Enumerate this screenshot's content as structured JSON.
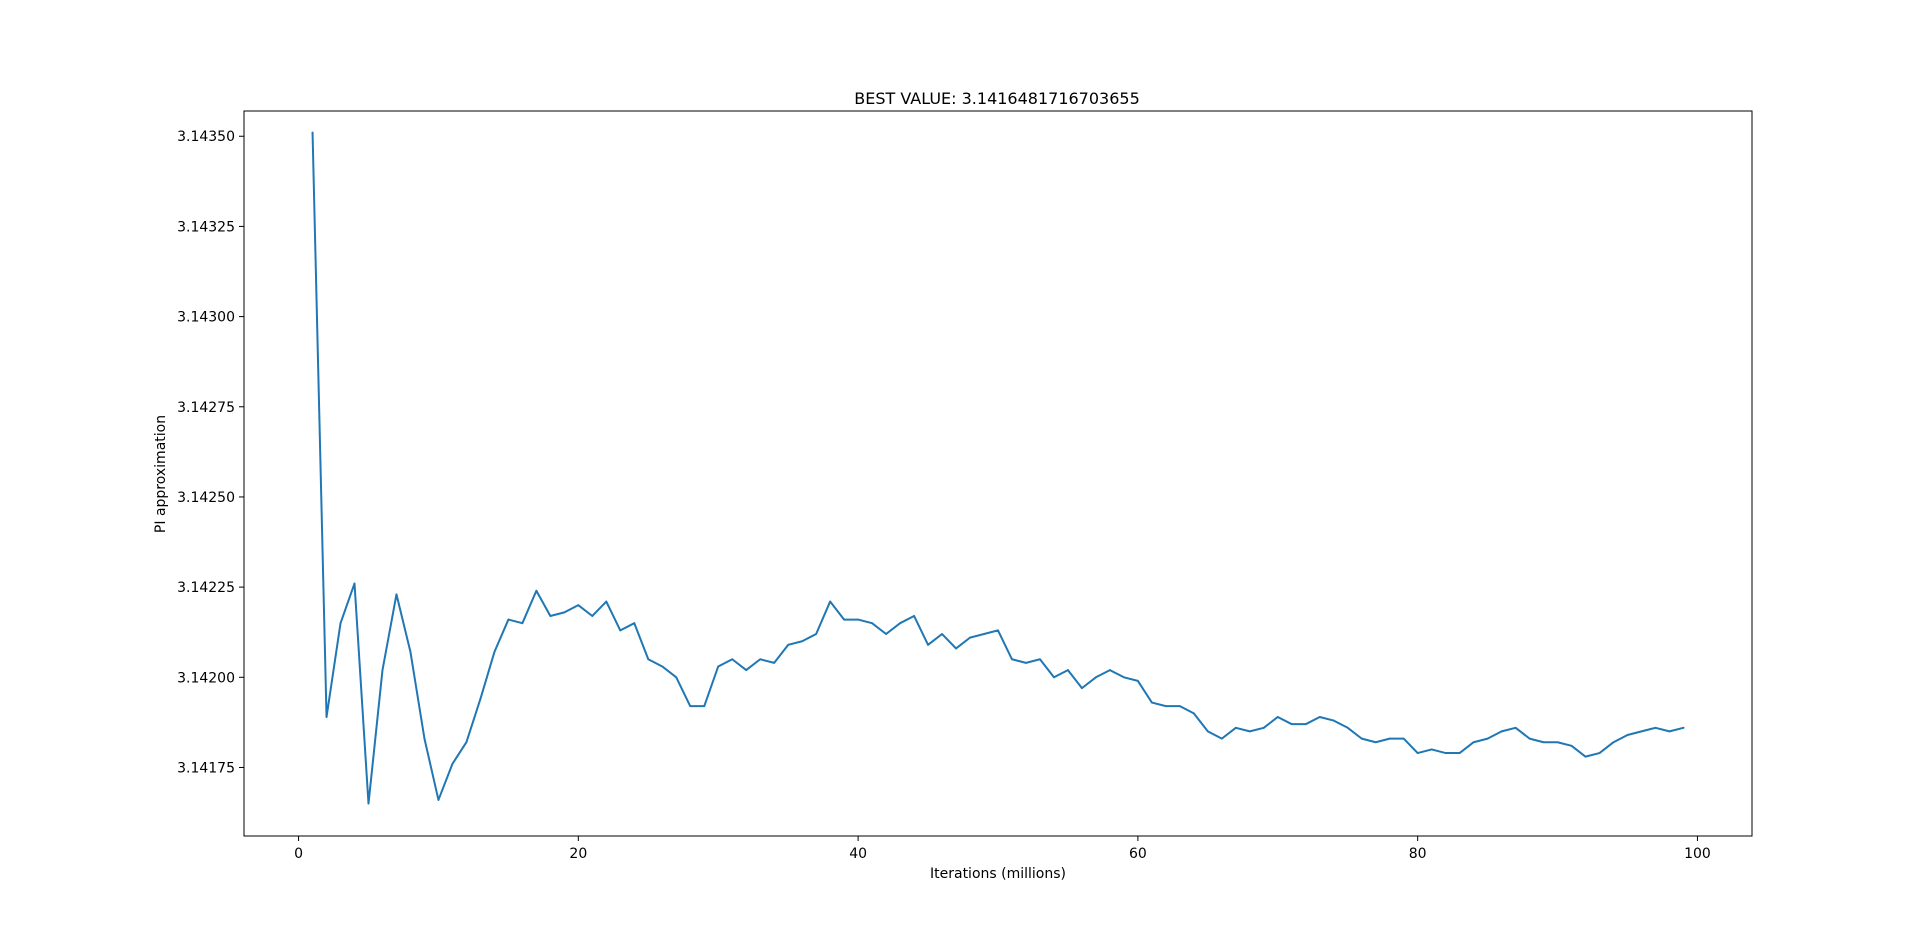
{
  "chart_data": {
    "type": "line",
    "title": "BEST VALUE: 3.1416481716703655",
    "xlabel": "Iterations (millions)",
    "ylabel": "PI approximation",
    "xlim": [
      -3.9,
      103.9
    ],
    "ylim": [
      3.14156,
      3.14357
    ],
    "xticks": [
      0,
      20,
      40,
      60,
      80,
      100
    ],
    "xtick_labels": [
      "0",
      "20",
      "40",
      "60",
      "80",
      "100"
    ],
    "yticks": [
      3.14175,
      3.142,
      3.14225,
      3.1425,
      3.14275,
      3.143,
      3.14325,
      3.1435
    ],
    "ytick_labels": [
      "3.14175",
      "3.14200",
      "3.14225",
      "3.14250",
      "3.14275",
      "3.14300",
      "3.14325",
      "3.14350"
    ],
    "grid": false,
    "line_color": "#1f77b4",
    "series": [
      {
        "x": [
          1,
          2,
          3,
          4,
          5,
          6,
          7,
          8,
          9,
          10,
          11,
          12,
          13,
          14,
          15,
          16,
          17,
          18,
          19,
          20,
          21,
          22,
          23,
          24,
          25,
          26,
          27,
          28,
          29,
          30,
          31,
          32,
          33,
          34,
          35,
          36,
          37,
          38,
          39,
          40,
          41,
          42,
          43,
          44,
          45,
          46,
          47,
          48,
          49,
          50,
          51,
          52,
          53,
          54,
          55,
          56,
          57,
          58,
          59,
          60,
          61,
          62,
          63,
          64,
          65,
          66,
          67,
          68,
          69,
          70,
          71,
          72,
          73,
          74,
          75,
          76,
          77,
          78,
          79,
          80,
          81,
          82,
          83,
          84,
          85,
          86,
          87,
          88,
          89,
          90,
          91,
          92,
          93,
          94,
          95,
          96,
          97,
          98,
          99
        ],
        "values": [
          3.14351,
          3.14189,
          3.14215,
          3.14226,
          3.14165,
          3.14202,
          3.14223,
          3.14207,
          3.14183,
          3.14166,
          3.14176,
          3.14182,
          3.14194,
          3.14207,
          3.14216,
          3.14215,
          3.14224,
          3.14217,
          3.14218,
          3.1422,
          3.14217,
          3.14221,
          3.14213,
          3.14215,
          3.14205,
          3.14203,
          3.142,
          3.14192,
          3.14192,
          3.14203,
          3.14205,
          3.14202,
          3.14205,
          3.14204,
          3.14209,
          3.1421,
          3.14212,
          3.14221,
          3.14216,
          3.14216,
          3.14215,
          3.14212,
          3.14215,
          3.14217,
          3.14209,
          3.14212,
          3.14208,
          3.14211,
          3.14212,
          3.14213,
          3.14205,
          3.14204,
          3.14205,
          3.142,
          3.14202,
          3.14197,
          3.142,
          3.14202,
          3.142,
          3.14199,
          3.14193,
          3.14192,
          3.14192,
          3.1419,
          3.14185,
          3.14183,
          3.14186,
          3.14185,
          3.14186,
          3.14189,
          3.14187,
          3.14187,
          3.14189,
          3.14188,
          3.14186,
          3.14183,
          3.14182,
          3.14183,
          3.14183,
          3.14179,
          3.1418,
          3.14179,
          3.14179,
          3.14182,
          3.14183,
          3.14185,
          3.14186,
          3.14183,
          3.14182,
          3.14182,
          3.14181,
          3.14178,
          3.14179,
          3.14182,
          3.14184,
          3.14185,
          3.14186,
          3.14185,
          3.14186
        ]
      }
    ]
  }
}
